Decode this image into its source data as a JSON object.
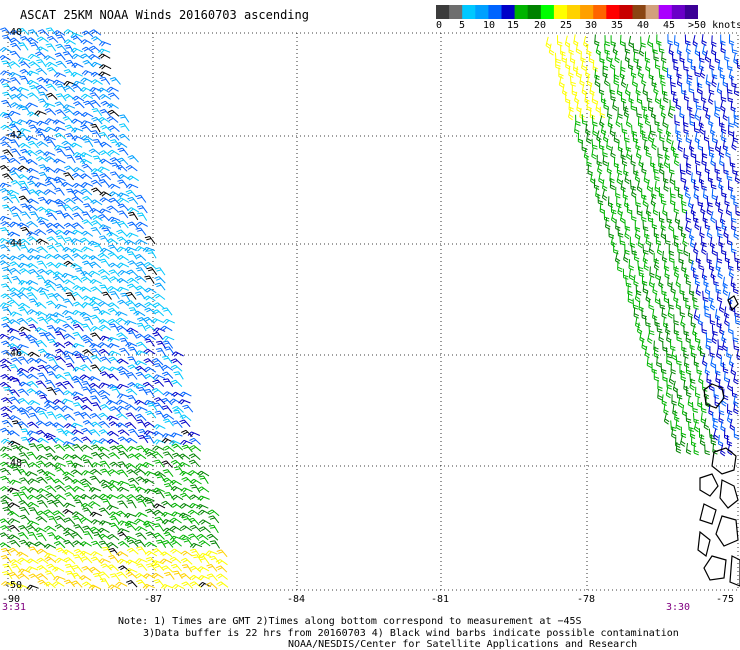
{
  "title": "ASCAT 25KM NOAA Winds 20160703 ascending",
  "legend": {
    "colors": [
      "#3c3c3c",
      "#6e6e6e",
      "#00c8ff",
      "#00a0ff",
      "#0064ff",
      "#0000c8",
      "#00b400",
      "#008200",
      "#00ff00",
      "#ffff00",
      "#ffd200",
      "#ffa000",
      "#ff6400",
      "#ff0000",
      "#c80000",
      "#8b4513",
      "#d2a07c",
      "#aa00ff",
      "#6a00c8",
      "#3c0096"
    ],
    "labels": [
      "0",
      "5",
      "10",
      "15",
      "20",
      "25",
      "30",
      "35",
      "40",
      "45",
      ">50 knots"
    ]
  },
  "axes": {
    "lat_labels": [
      "-40",
      "-42",
      "-44",
      "-46",
      "-48",
      "-50"
    ],
    "lon_labels": [
      "-90",
      "-87",
      "-84",
      "-81",
      "-78",
      "-75"
    ]
  },
  "times": {
    "left": "3:31",
    "right": "3:30"
  },
  "notes": [
    "Note: 1) Times are GMT 2)Times along bottom correspond to measurement at −45S",
    "3)Data buffer is 22 hrs from 20160703 4) Black wind barbs indicate possible contamination",
    "NOAA/NESDIS/Center for Satellite Applications and Research"
  ]
}
